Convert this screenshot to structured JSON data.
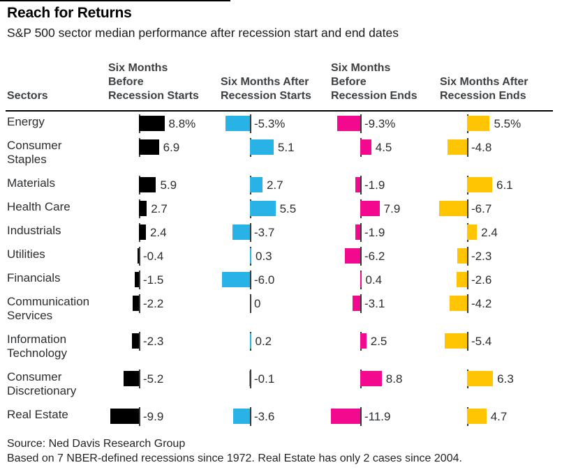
{
  "header": {
    "title": "Reach for Returns",
    "subtitle": "S&P 500 sector median performance after recession start and end dates"
  },
  "table": {
    "sectors_header": "Sectors",
    "column_headers": [
      {
        "lines": [
          "Six Months",
          "Before",
          "Recession Starts"
        ]
      },
      {
        "lines": [
          "Six Months After",
          "Recession Starts"
        ]
      },
      {
        "lines": [
          "Six Months",
          "Before",
          "Recession Ends"
        ]
      },
      {
        "lines": [
          "Six Months After",
          "Recession Ends"
        ]
      }
    ]
  },
  "chart_data": {
    "type": "bar",
    "title": "Reach for Returns",
    "subtitle": "S&P 500 sector median performance after recession start and end dates",
    "orientation": "horizontal",
    "legend": "none",
    "grid": "off",
    "normalization": "each column scaled independently to its own max absolute value",
    "unit": "%",
    "categories": [
      "Energy",
      "Consumer Staples",
      "Materials",
      "Health Care",
      "Industrials",
      "Utilities",
      "Financials",
      "Communication Services",
      "Information Technology",
      "Consumer Discretionary",
      "Real Estate"
    ],
    "series": [
      {
        "name": "Six Months Before Recession Starts",
        "color": "#000000",
        "max_abs": 9.9,
        "values": [
          8.8,
          6.9,
          5.9,
          2.7,
          2.4,
          -0.4,
          -1.5,
          -2.2,
          -2.3,
          -5.2,
          -9.9
        ],
        "labels": [
          "8.8%",
          "6.9",
          "5.9",
          "2.7",
          "2.4",
          "-0.4",
          "-1.5",
          "-2.2",
          "-2.3",
          "-5.2",
          "-9.9"
        ]
      },
      {
        "name": "Six Months After Recession Starts",
        "color": "#29B2E6",
        "max_abs": 6.0,
        "values": [
          -5.3,
          5.1,
          2.7,
          5.5,
          -3.7,
          0.3,
          -6.0,
          0,
          0.2,
          -0.1,
          -3.6
        ],
        "labels": [
          "-5.3%",
          "5.1",
          "2.7",
          "5.5",
          "-3.7",
          "0.3",
          "-6.0",
          "0",
          "0.2",
          "-0.1",
          "-3.6"
        ]
      },
      {
        "name": "Six Months Before Recession Ends",
        "color": "#F2098E",
        "max_abs": 11.9,
        "values": [
          -9.3,
          4.5,
          -1.9,
          7.9,
          -1.9,
          -6.2,
          0.4,
          -3.1,
          2.5,
          8.8,
          -11.9
        ],
        "labels": [
          "-9.3%",
          "4.5",
          "-1.9",
          "7.9",
          "-1.9",
          "-6.2",
          "0.4",
          "-3.1",
          "2.5",
          "8.8",
          "-11.9"
        ]
      },
      {
        "name": "Six Months After Recession Ends",
        "color": "#FFC402",
        "max_abs": 6.7,
        "values": [
          5.5,
          -4.8,
          6.1,
          -6.7,
          2.4,
          -2.3,
          -2.6,
          -4.2,
          -5.4,
          6.3,
          4.7
        ],
        "labels": [
          "5.5%",
          "-4.8",
          "6.1",
          "-6.7",
          "2.4",
          "-2.3",
          "-2.6",
          "-4.2",
          "-5.4",
          "6.3",
          "4.7"
        ]
      }
    ]
  },
  "footer": {
    "source": "Source: Ned Davis Research Group",
    "note": "Based on 7 NBER-defined recessions since 1972. Real Estate has only 2 cases since 2004."
  }
}
